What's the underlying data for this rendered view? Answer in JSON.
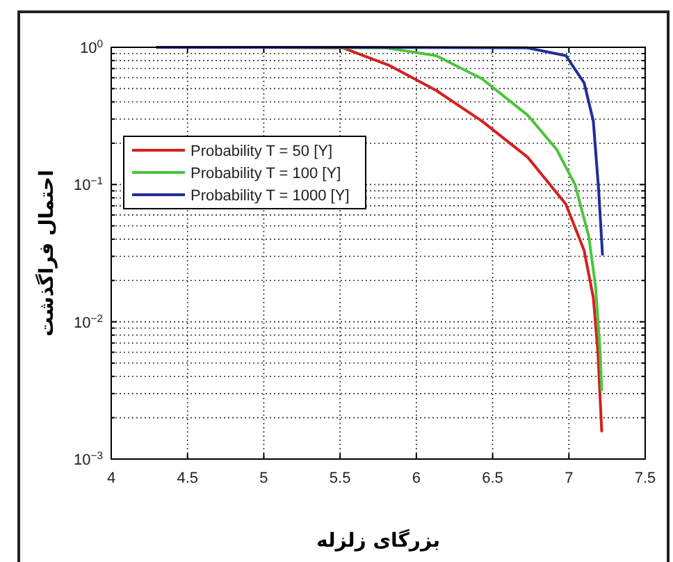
{
  "chart_data": {
    "type": "line",
    "xlabel": "بزرگای زلزله",
    "ylabel": "احتمال فراگذشت",
    "xlim": [
      4,
      7.5
    ],
    "xticks": [
      4,
      4.5,
      5,
      5.5,
      6,
      6.5,
      7,
      7.5
    ],
    "ylim": [
      0.001,
      1
    ],
    "log": true,
    "yticks": [
      {
        "value": 0.001,
        "label": "10$^{−3}$"
      },
      {
        "value": 0.002,
        "label": null
      },
      {
        "value": 0.003,
        "label": null
      },
      {
        "value": 0.004,
        "label": null
      },
      {
        "value": 0.005,
        "label": null
      },
      {
        "value": 0.006,
        "label": null
      },
      {
        "value": 0.007,
        "label": null
      },
      {
        "value": 0.008,
        "label": null
      },
      {
        "value": 0.009,
        "label": null
      },
      {
        "value": 0.01,
        "label": "10$^{−2}$"
      },
      {
        "value": 0.02,
        "label": null
      },
      {
        "value": 0.03,
        "label": null
      },
      {
        "value": 0.04,
        "label": null
      },
      {
        "value": 0.05,
        "label": null
      },
      {
        "value": 0.06,
        "label": null
      },
      {
        "value": 0.07,
        "label": null
      },
      {
        "value": 0.08,
        "label": null
      },
      {
        "value": 0.09,
        "label": null
      },
      {
        "value": 0.1,
        "label": "10$^{−1}$"
      },
      {
        "value": 0.2,
        "label": null
      },
      {
        "value": 0.3,
        "label": null
      },
      {
        "value": 0.4,
        "label": null
      },
      {
        "value": 0.5,
        "label": null
      },
      {
        "value": 0.6,
        "label": null
      },
      {
        "value": 0.7,
        "label": null
      },
      {
        "value": 0.8,
        "label": null
      },
      {
        "value": 0.9,
        "label": null
      },
      {
        "value": 1,
        "label": "10$^{0}$"
      }
    ],
    "grid": true,
    "legend": "top left",
    "line_style": "solid",
    "marker": "none",
    "series": [
      {
        "name": "Probability T = 50 [Y]",
        "color": "#d42020",
        "x": [
          4.3,
          5.0,
          5.52,
          5.82,
          6.13,
          6.43,
          6.73,
          6.98,
          7.1,
          7.16,
          7.19,
          7.215
        ],
        "values": [
          1,
          1,
          0.99,
          0.74,
          0.485,
          0.29,
          0.158,
          0.072,
          0.033,
          0.015,
          0.006,
          0.0016
        ]
      },
      {
        "name": "Probability T = 100 [Y]",
        "color": "#4cc43c",
        "x": [
          4.3,
          5.0,
          5.8,
          6.13,
          6.43,
          6.73,
          6.92,
          7.04,
          7.13,
          7.175,
          7.205,
          7.215
        ],
        "values": [
          1,
          1,
          0.99,
          0.87,
          0.59,
          0.32,
          0.18,
          0.1,
          0.042,
          0.018,
          0.006,
          0.0032
        ]
      },
      {
        "name": "Probability T = 1000 [Y]",
        "color": "#1f2d9a",
        "x": [
          4.3,
          5.5,
          6.73,
          6.98,
          7.1,
          7.16,
          7.195,
          7.22
        ],
        "values": [
          1,
          1,
          0.99,
          0.87,
          0.55,
          0.29,
          0.091,
          0.031
        ]
      }
    ]
  }
}
